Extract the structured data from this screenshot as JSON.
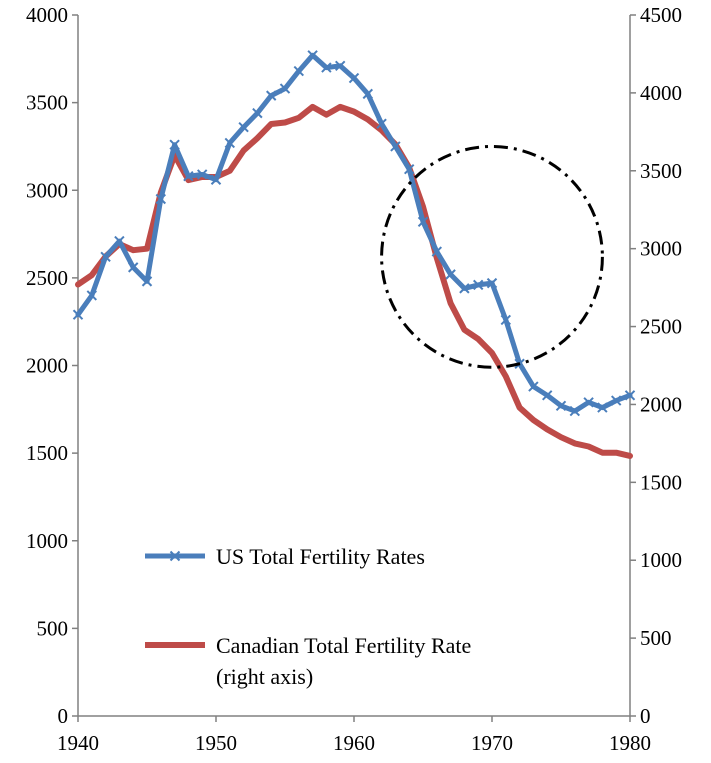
{
  "chart_data": {
    "type": "line",
    "x": [
      1940,
      1941,
      1942,
      1943,
      1944,
      1945,
      1946,
      1947,
      1948,
      1949,
      1950,
      1951,
      1952,
      1953,
      1954,
      1955,
      1956,
      1957,
      1958,
      1959,
      1960,
      1961,
      1962,
      1963,
      1964,
      1965,
      1966,
      1967,
      1968,
      1969,
      1970,
      1971,
      1972,
      1973,
      1974,
      1975,
      1976,
      1977,
      1978,
      1979,
      1980
    ],
    "series": [
      {
        "name": "US Total Fertility Rates",
        "axis": "left",
        "color": "#4a7ebb",
        "marker": "x",
        "values": [
          2290,
          2400,
          2620,
          2710,
          2560,
          2480,
          2950,
          3260,
          3080,
          3090,
          3060,
          3270,
          3360,
          3440,
          3540,
          3580,
          3680,
          3770,
          3700,
          3710,
          3640,
          3550,
          3380,
          3250,
          3120,
          2820,
          2650,
          2520,
          2440,
          2460,
          2470,
          2260,
          2010,
          1880,
          1830,
          1770,
          1740,
          1790,
          1760,
          1800,
          1830
        ]
      },
      {
        "name": "Canadian Total Fertility Rate\n(right axis)",
        "axis": "right",
        "color": "#be4b48",
        "marker": "none",
        "values": [
          2770,
          2830,
          2950,
          3030,
          2990,
          3000,
          3360,
          3600,
          3440,
          3460,
          3460,
          3500,
          3630,
          3710,
          3800,
          3810,
          3840,
          3910,
          3860,
          3910,
          3880,
          3830,
          3760,
          3670,
          3520,
          3270,
          2940,
          2650,
          2480,
          2420,
          2330,
          2180,
          1980,
          1900,
          1840,
          1790,
          1750,
          1730,
          1690,
          1690,
          1670
        ]
      }
    ],
    "xlim": [
      1940,
      1980
    ],
    "xticks": [
      "1940",
      "1950",
      "1960",
      "1970",
      "1980"
    ],
    "ylim_left": [
      0,
      4000
    ],
    "yticks_left": [
      "0",
      "500",
      "1000",
      "1500",
      "2000",
      "2500",
      "3000",
      "3500",
      "4000"
    ],
    "ylim_right": [
      0,
      4500
    ],
    "yticks_right": [
      "0",
      "500",
      "1000",
      "1500",
      "2000",
      "2500",
      "3000",
      "3500",
      "4000",
      "4500"
    ],
    "grid": false,
    "legend": [
      {
        "label": "US Total Fertility Rates",
        "color": "#4a7ebb",
        "marker": "x"
      },
      {
        "label": "Canadian Total Fertility Rate",
        "label_line2": "(right axis)",
        "color": "#be4b48",
        "marker": "none"
      }
    ],
    "legend_position": "bottom-left",
    "annotation": {
      "type": "dash-dot circle",
      "center_x": 1970,
      "center_y_left": 2620,
      "radius_years": 8
    }
  }
}
